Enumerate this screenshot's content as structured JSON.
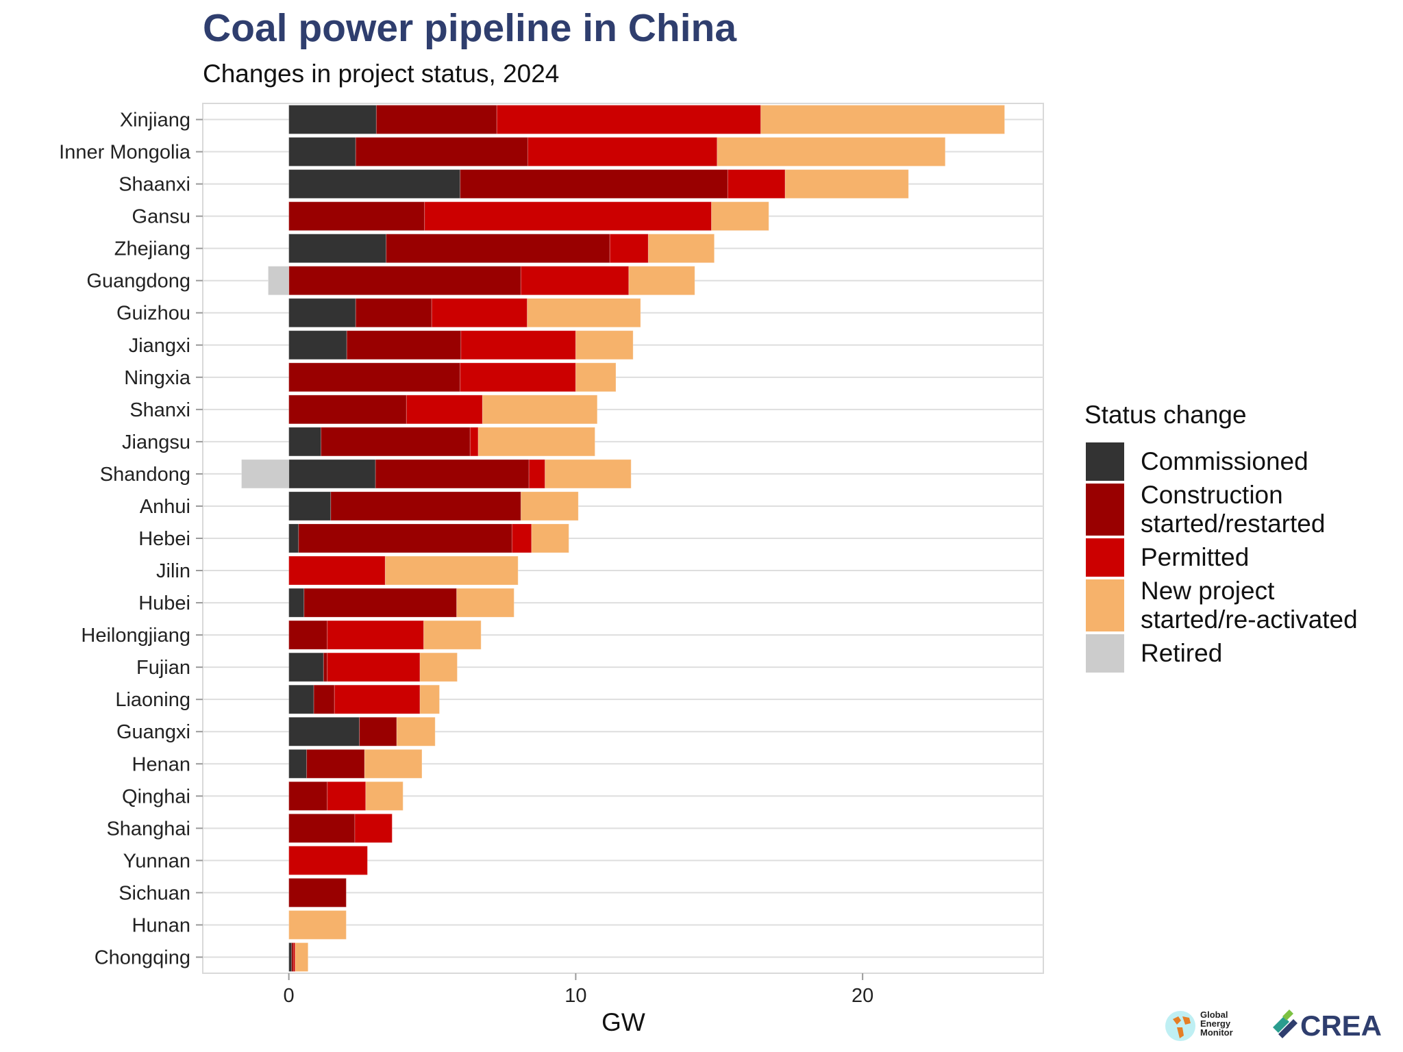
{
  "chart_data": {
    "type": "bar",
    "orientation": "horizontal-stacked",
    "title": "Coal power pipeline in China",
    "subtitle": "Changes in project status, 2024",
    "xlabel": "GW",
    "ylabel": "",
    "xlim": [
      -3,
      26.3
    ],
    "xticks": [
      0,
      10,
      20
    ],
    "grid": true,
    "legend": {
      "title": "Status change",
      "placement": "right"
    },
    "categories": [
      "Xinjiang",
      "Inner Mongolia",
      "Shaanxi",
      "Gansu",
      "Zhejiang",
      "Guangdong",
      "Guizhou",
      "Jiangxi",
      "Ningxia",
      "Shanxi",
      "Jiangsu",
      "Shandong",
      "Anhui",
      "Hebei",
      "Jilin",
      "Hubei",
      "Heilongjiang",
      "Fujian",
      "Liaoning",
      "Guangxi",
      "Henan",
      "Qinghai",
      "Shanghai",
      "Yunnan",
      "Sichuan",
      "Hunan",
      "Chongqing"
    ],
    "series": [
      {
        "name": "Commissioned",
        "color": "#333333",
        "values": [
          3.05,
          2.33,
          5.97,
          0,
          3.39,
          0,
          2.33,
          2.02,
          0,
          0,
          1.12,
          3.02,
          1.46,
          0.34,
          0,
          0.53,
          0,
          1.21,
          0.87,
          2.46,
          0.62,
          0,
          0,
          0,
          0,
          0,
          0.1
        ]
      },
      {
        "name": "Construction started/restarted",
        "color": "#990000",
        "values": [
          4.2,
          6.0,
          9.33,
          4.73,
          7.8,
          8.09,
          2.65,
          3.98,
          5.97,
          4.1,
          5.2,
          5.35,
          6.63,
          7.44,
          0,
          5.32,
          1.34,
          0.13,
          0.72,
          1.3,
          2.02,
          1.34,
          2.3,
          0,
          2.0,
          0,
          0.06
        ]
      },
      {
        "name": "Permitted",
        "color": "#cc0000",
        "values": [
          9.2,
          6.6,
          2.0,
          10.0,
          1.34,
          3.76,
          3.33,
          4.0,
          4.03,
          2.65,
          0.28,
          0.56,
          0,
          0.68,
          3.36,
          0,
          3.36,
          3.23,
          2.98,
          0,
          0,
          1.34,
          1.3,
          2.74,
          0,
          0,
          0.06
        ]
      },
      {
        "name": "New project started/re-activated",
        "color": "#f6b26b",
        "values": [
          8.5,
          7.95,
          4.3,
          2.0,
          2.3,
          2.3,
          3.95,
          2.0,
          1.4,
          4.0,
          4.07,
          3.0,
          2.0,
          1.3,
          4.63,
          2.0,
          2.0,
          1.3,
          0.68,
          1.34,
          2.0,
          1.3,
          0,
          0,
          0,
          2.0,
          0.45
        ]
      },
      {
        "name": "Retired",
        "color": "#cccccc",
        "values": [
          0,
          0,
          0,
          0,
          0,
          -0.72,
          0,
          0,
          0,
          0,
          0,
          -1.65,
          0,
          0,
          0,
          0,
          0,
          0,
          0,
          0,
          0,
          0,
          0,
          0,
          0,
          0,
          0
        ]
      }
    ]
  },
  "legend_labels": [
    [
      "Commissioned"
    ],
    [
      "Construction",
      "started/restarted"
    ],
    [
      "Permitted"
    ],
    [
      "New project",
      "started/re-activated"
    ],
    [
      "Retired"
    ]
  ],
  "logos": {
    "gem": "Global Energy Monitor",
    "crea": "CREA"
  }
}
